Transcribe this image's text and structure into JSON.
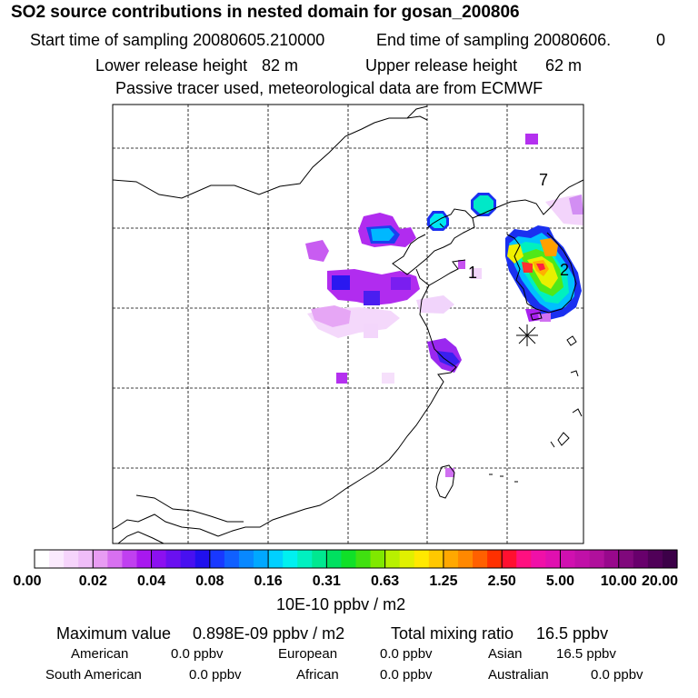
{
  "header": {
    "title": "SO2 source contributions in nested domain for gosan_200806",
    "start_label": "Start time of sampling 20080605.210000",
    "end_label": "End time of sampling 20080606.",
    "end_value": "0",
    "lower_label": "Lower release height",
    "lower_value": "82 m",
    "upper_label": "Upper release height",
    "upper_value": "62 m",
    "note": "Passive tracer used, meteorological data are from ECMWF"
  },
  "map": {
    "region_labels": [
      "1",
      "2",
      "7"
    ],
    "receptor": "gosan"
  },
  "colorbar": {
    "unit": "10E-10 ppbv / m2",
    "ticks": [
      "0.00",
      "0.02",
      "0.04",
      "0.08",
      "0.16",
      "0.31",
      "0.63",
      "1.25",
      "2.50",
      "5.00",
      "10.00",
      "20.00"
    ],
    "colors": [
      "#ffffff",
      "#fbeafd",
      "#f6d4fb",
      "#efbdf8",
      "#e89cf3",
      "#d870f0",
      "#c040f0",
      "#a818ef",
      "#8c10f0",
      "#6a10f0",
      "#4810f0",
      "#2010ee",
      "#1838ff",
      "#1060ff",
      "#0888ff",
      "#00a8ff",
      "#00d0ff",
      "#00f0f0",
      "#00f0c0",
      "#00e890",
      "#00e060",
      "#10e028",
      "#40e010",
      "#80e800",
      "#b8f000",
      "#e0f000",
      "#ffe800",
      "#ffc800",
      "#ffa800",
      "#ff8800",
      "#ff6000",
      "#ff3000",
      "#ff1030",
      "#ff1080",
      "#f010a8",
      "#e010b0",
      "#d010b0",
      "#c010a8",
      "#b0109c",
      "#98088c",
      "#80087c",
      "#68006c",
      "#500058",
      "#3c0048"
    ]
  },
  "summary": {
    "max_label": "Maximum value",
    "max_value": "0.898E-09 ppbv / m2",
    "total_label": "Total mixing ratio",
    "total_value": "16.5 ppbv",
    "regions": [
      {
        "name": "American",
        "value": "0.0 ppbv"
      },
      {
        "name": "European",
        "value": "0.0 ppbv"
      },
      {
        "name": "Asian",
        "value": "16.5 ppbv"
      },
      {
        "name": "South American",
        "value": "0.0 ppbv"
      },
      {
        "name": "African",
        "value": "0.0 ppbv"
      },
      {
        "name": "Australian",
        "value": "0.0 ppbv"
      }
    ]
  }
}
